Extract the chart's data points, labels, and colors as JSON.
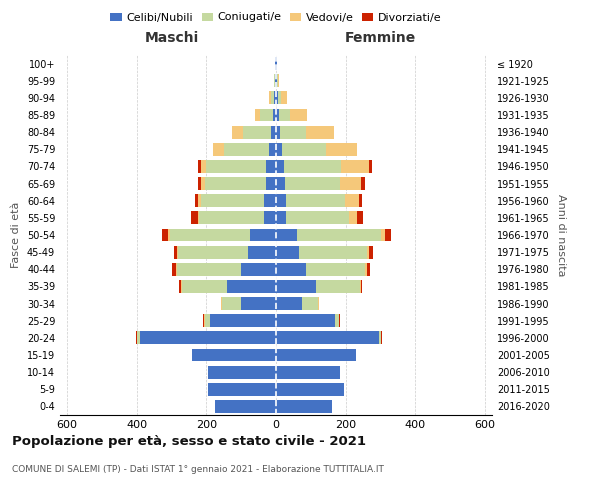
{
  "age_groups": [
    "0-4",
    "5-9",
    "10-14",
    "15-19",
    "20-24",
    "25-29",
    "30-34",
    "35-39",
    "40-44",
    "45-49",
    "50-54",
    "55-59",
    "60-64",
    "65-69",
    "70-74",
    "75-79",
    "80-84",
    "85-89",
    "90-94",
    "95-99",
    "100+"
  ],
  "birth_years": [
    "2016-2020",
    "2011-2015",
    "2006-2010",
    "2001-2005",
    "1996-2000",
    "1991-1995",
    "1986-1990",
    "1981-1985",
    "1976-1980",
    "1971-1975",
    "1966-1970",
    "1961-1965",
    "1956-1960",
    "1951-1955",
    "1946-1950",
    "1941-1945",
    "1936-1940",
    "1931-1935",
    "1926-1930",
    "1921-1925",
    "≤ 1920"
  ],
  "colors": {
    "celibe": "#4472C4",
    "coniugato": "#C5D9A0",
    "vedovo": "#F5C87A",
    "divorziato": "#CC2200"
  },
  "males": {
    "celibe": [
      175,
      195,
      195,
      240,
      390,
      190,
      100,
      140,
      100,
      80,
      75,
      35,
      35,
      30,
      30,
      20,
      15,
      10,
      5,
      3,
      2
    ],
    "coniugato": [
      0,
      0,
      0,
      0,
      8,
      15,
      55,
      130,
      185,
      200,
      230,
      185,
      180,
      175,
      170,
      130,
      80,
      35,
      8,
      2,
      0
    ],
    "vedovo": [
      0,
      0,
      0,
      0,
      2,
      2,
      2,
      3,
      3,
      3,
      5,
      5,
      8,
      10,
      15,
      30,
      30,
      15,
      8,
      2,
      0
    ],
    "divorziato": [
      0,
      0,
      0,
      0,
      2,
      2,
      2,
      5,
      10,
      10,
      18,
      18,
      10,
      8,
      10,
      0,
      0,
      0,
      0,
      0,
      0
    ]
  },
  "females": {
    "nubile": [
      160,
      195,
      185,
      230,
      295,
      170,
      75,
      115,
      85,
      65,
      60,
      30,
      28,
      25,
      22,
      18,
      12,
      10,
      5,
      3,
      2
    ],
    "coniugata": [
      0,
      0,
      0,
      0,
      5,
      10,
      45,
      125,
      170,
      195,
      240,
      180,
      170,
      160,
      165,
      125,
      75,
      30,
      8,
      2,
      0
    ],
    "vedova": [
      0,
      0,
      0,
      0,
      2,
      2,
      2,
      3,
      5,
      8,
      12,
      22,
      40,
      60,
      80,
      90,
      80,
      50,
      20,
      3,
      0
    ],
    "divorziata": [
      0,
      0,
      0,
      0,
      2,
      2,
      2,
      5,
      10,
      10,
      18,
      18,
      10,
      10,
      8,
      0,
      0,
      0,
      0,
      0,
      0
    ]
  },
  "xlim": 620,
  "title": "Popolazione per età, sesso e stato civile - 2021",
  "subtitle": "COMUNE DI SALEMI (TP) - Dati ISTAT 1° gennaio 2021 - Elaborazione TUTTITALIA.IT",
  "ylabel_left": "Fasce di età",
  "ylabel_right": "Anni di nascita",
  "xlabel_left": "Maschi",
  "xlabel_right": "Femmine",
  "background": "#FFFFFF",
  "grid_color": "#CCCCCC"
}
